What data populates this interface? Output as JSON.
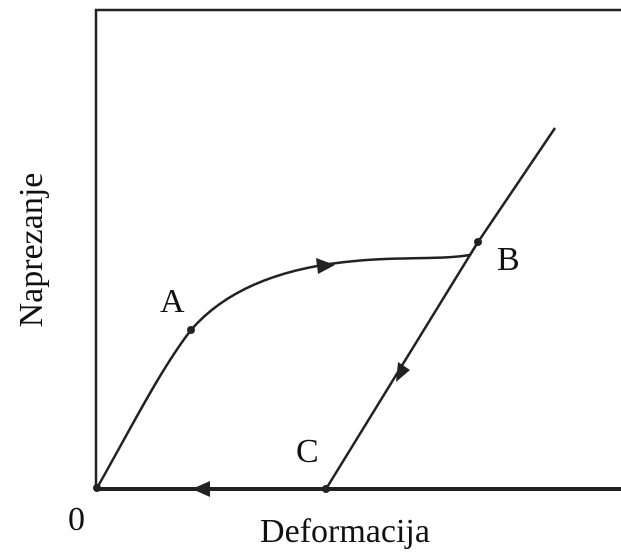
{
  "axes": {
    "y_label": "Naprezanje",
    "x_label": "Deformacija",
    "origin": "0"
  },
  "points": [
    "A",
    "B",
    "C"
  ]
}
